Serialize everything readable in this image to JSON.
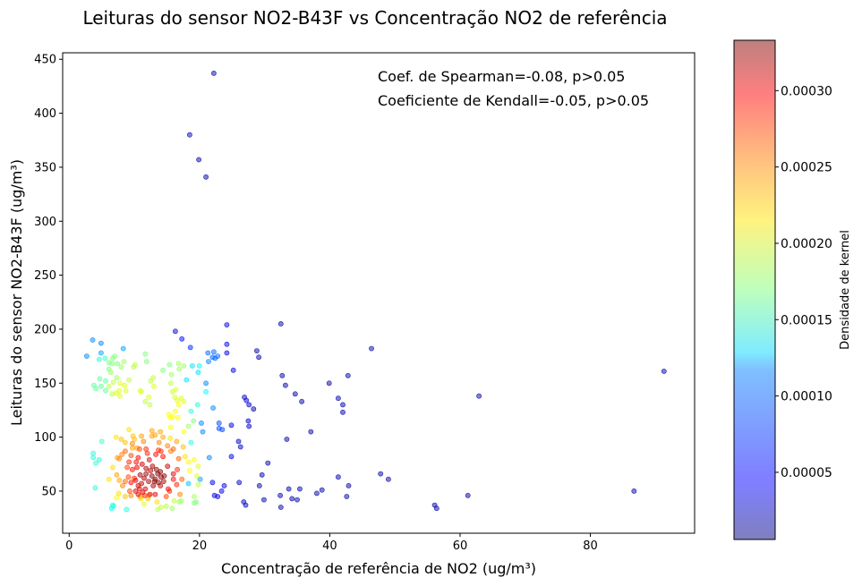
{
  "chart_data": {
    "type": "scatter",
    "title": "Leituras do sensor NO2-B43F vs Concentração NO2 de referência",
    "xlabel": "Concentração de referência de NO2 (ug/m³)",
    "ylabel": "Leituras do sensor NO2-B43F (ug/m³)",
    "xlim": [
      -1,
      96
    ],
    "ylim": [
      11,
      456
    ],
    "xticks": [
      0,
      20,
      40,
      60,
      80
    ],
    "yticks": [
      50,
      100,
      150,
      200,
      250,
      300,
      350,
      400,
      450
    ],
    "grid": false,
    "colormap": "jet",
    "marker_alpha": 0.5,
    "colorbar": {
      "label": "Densidade de kernel",
      "range": [
        6e-06,
        0.000333
      ],
      "ticks": [
        5e-05,
        0.0001,
        0.00015,
        0.0002,
        0.00025,
        0.0003
      ],
      "tick_labels": [
        "0.00005",
        "0.00010",
        "0.00015",
        "0.00020",
        "0.00025",
        "0.00030"
      ]
    },
    "annotations": [
      "Coef. de Spearman=-0.08, p>0.05",
      "Coeficiente de Kendall=-0.05, p>0.05"
    ],
    "points": [
      [
        22.2,
        437,
        2e-05
      ],
      [
        18.5,
        380,
        2e-05
      ],
      [
        19.9,
        357,
        2e-05
      ],
      [
        21.0,
        341,
        2e-05
      ],
      [
        91.3,
        161,
        2e-05
      ],
      [
        86.7,
        50,
        2e-05
      ],
      [
        62.9,
        138,
        2e-05
      ],
      [
        61.2,
        46,
        2e-05
      ],
      [
        56.4,
        34,
        2e-05
      ],
      [
        56.1,
        37,
        2e-05
      ],
      [
        49.0,
        61,
        2e-05
      ],
      [
        47.8,
        66,
        2e-05
      ],
      [
        46.4,
        182,
        2e-05
      ],
      [
        42.8,
        157,
        2e-05
      ],
      [
        42.9,
        55,
        2e-05
      ],
      [
        42.6,
        45,
        2e-05
      ],
      [
        42.0,
        130,
        2e-05
      ],
      [
        42.0,
        123,
        2e-05
      ],
      [
        41.3,
        136,
        2e-05
      ],
      [
        41.3,
        63,
        2e-05
      ],
      [
        39.9,
        150,
        2e-05
      ],
      [
        38.8,
        51,
        2e-05
      ],
      [
        38.0,
        48,
        2e-05
      ],
      [
        37.1,
        105,
        2e-05
      ],
      [
        35.7,
        133,
        2e-05
      ],
      [
        35.0,
        42,
        2e-05
      ],
      [
        35.4,
        52,
        2e-05
      ],
      [
        34.7,
        140,
        2e-05
      ],
      [
        34.2,
        43,
        2e-05
      ],
      [
        33.7,
        52,
        2e-05
      ],
      [
        33.4,
        98,
        2e-05
      ],
      [
        33.2,
        148,
        2e-05
      ],
      [
        32.7,
        157,
        2e-05
      ],
      [
        32.5,
        205,
        2e-05
      ],
      [
        32.5,
        35,
        2e-05
      ],
      [
        32.4,
        46,
        2e-05
      ],
      [
        30.5,
        76,
        2e-05
      ],
      [
        29.9,
        42,
        2e-05
      ],
      [
        29.6,
        65,
        2e-05
      ],
      [
        29.2,
        55,
        2e-05
      ],
      [
        29.1,
        174,
        2e-05
      ],
      [
        28.8,
        180,
        2e-05
      ],
      [
        28.3,
        126,
        2e-05
      ],
      [
        27.6,
        110,
        3e-05
      ],
      [
        27.5,
        115,
        3e-05
      ],
      [
        27.6,
        130,
        3e-05
      ],
      [
        27.2,
        134,
        3e-05
      ],
      [
        27.1,
        37,
        3e-05
      ],
      [
        26.9,
        137,
        3e-05
      ],
      [
        26.8,
        40,
        3e-05
      ],
      [
        26.0,
        96,
        3e-05
      ],
      [
        26.3,
        91,
        3e-05
      ],
      [
        26.1,
        58,
        3e-05
      ],
      [
        25.2,
        162,
        4e-05
      ],
      [
        24.9,
        111,
        4e-05
      ],
      [
        24.9,
        82,
        4e-05
      ],
      [
        24.2,
        204,
        4e-05
      ],
      [
        24.2,
        186,
        4e-05
      ],
      [
        24.2,
        178,
        4e-05
      ],
      [
        23.8,
        55,
        4e-05
      ],
      [
        23.4,
        50,
        4e-05
      ],
      [
        22.0,
        58,
        4e-05
      ],
      [
        22.8,
        45,
        4e-05
      ],
      [
        22.3,
        46,
        4e-05
      ],
      [
        16.3,
        198,
        4e-05
      ],
      [
        17.3,
        191,
        5e-05
      ],
      [
        18.6,
        183,
        6e-05
      ],
      [
        23.0,
        108,
        7e-05
      ],
      [
        23.0,
        113,
        7e-05
      ],
      [
        23.5,
        107,
        7e-05
      ],
      [
        22.4,
        173,
        8e-05
      ],
      [
        22.8,
        175,
        8e-05
      ],
      [
        22.0,
        174,
        8e-05
      ],
      [
        21.3,
        178,
        8e-05
      ],
      [
        22.2,
        179,
        8e-05
      ],
      [
        21.4,
        170,
        9e-05
      ],
      [
        22.1,
        127,
        9e-05
      ],
      [
        21.0,
        150,
        9e-05
      ],
      [
        20.5,
        105,
        9e-05
      ],
      [
        20.3,
        113,
        9e-05
      ],
      [
        21.5,
        81,
        9e-05
      ],
      [
        3.6,
        190,
        9e-05
      ],
      [
        4.9,
        187,
        9e-05
      ],
      [
        2.7,
        175,
        9e-05
      ],
      [
        4.9,
        178,
        0.0001
      ],
      [
        8.3,
        182,
        0.0001
      ],
      [
        20.1,
        61,
        0.0001
      ],
      [
        18.3,
        57,
        0.00011
      ],
      [
        18.0,
        153,
        0.00012
      ],
      [
        18.9,
        166,
        0.00012
      ],
      [
        19.8,
        160,
        0.00012
      ],
      [
        20.0,
        166,
        0.00013
      ],
      [
        21.0,
        142,
        0.00013
      ],
      [
        19.7,
        130,
        0.00014
      ],
      [
        18.7,
        124,
        0.00014
      ],
      [
        18.7,
        95,
        0.00014
      ],
      [
        6.5,
        34,
        0.00013
      ],
      [
        6.7,
        37,
        0.00014
      ],
      [
        6.8,
        36,
        0.00014
      ],
      [
        8.8,
        33,
        0.00014
      ],
      [
        3.7,
        81,
        0.00014
      ],
      [
        3.7,
        85,
        0.00014
      ],
      [
        4.1,
        76,
        0.00014
      ],
      [
        4.6,
        79,
        0.00014
      ],
      [
        4.0,
        53,
        0.00014
      ],
      [
        5.0,
        96,
        0.00015
      ],
      [
        4.6,
        172,
        0.00014
      ],
      [
        5.5,
        173,
        0.00015
      ],
      [
        3.8,
        148,
        0.00016
      ],
      [
        4.1,
        145,
        0.00016
      ],
      [
        4.9,
        147,
        0.00016
      ],
      [
        4.7,
        154,
        0.00016
      ],
      [
        5.6,
        152,
        0.00016
      ],
      [
        5.6,
        143,
        0.00016
      ],
      [
        6.1,
        163,
        0.00017
      ],
      [
        6.1,
        169,
        0.00017
      ],
      [
        6.6,
        168,
        0.00017
      ],
      [
        6.7,
        173,
        0.00017
      ],
      [
        7.0,
        175,
        0.00017
      ],
      [
        7.4,
        168,
        0.00017
      ],
      [
        6.4,
        160,
        0.00018
      ],
      [
        7.3,
        155,
        0.00018
      ],
      [
        6.8,
        151,
        0.00019
      ],
      [
        6.1,
        147,
        0.00019
      ],
      [
        6.6,
        140,
        0.00019
      ],
      [
        7.2,
        141,
        0.0002
      ],
      [
        7.8,
        138,
        0.0002
      ],
      [
        7.7,
        143,
        0.0002
      ],
      [
        7.8,
        150,
        0.0002
      ],
      [
        8.5,
        148,
        0.0002
      ],
      [
        8.7,
        143,
        0.0002
      ],
      [
        9.2,
        153,
        0.00019
      ],
      [
        9.9,
        165,
        0.00019
      ],
      [
        8.0,
        165,
        0.00018
      ],
      [
        8.4,
        170,
        0.00018
      ],
      [
        10.1,
        167,
        0.00019
      ],
      [
        11.7,
        177,
        0.00017
      ],
      [
        11.9,
        170,
        0.00017
      ],
      [
        12.9,
        155,
        0.00019
      ],
      [
        12.5,
        152,
        0.00019
      ],
      [
        13.0,
        147,
        0.0002
      ],
      [
        10.9,
        143,
        0.0002
      ],
      [
        11.1,
        142,
        0.0002
      ],
      [
        12.2,
        137,
        0.0002
      ],
      [
        11.7,
        133,
        0.00019
      ],
      [
        12.4,
        130,
        0.00019
      ],
      [
        15.4,
        167,
        0.00017
      ],
      [
        14.4,
        162,
        0.00017
      ],
      [
        15.7,
        158,
        0.00018
      ],
      [
        16.8,
        168,
        0.00018
      ],
      [
        16.9,
        163,
        0.00018
      ],
      [
        17.6,
        166,
        0.00018
      ],
      [
        15.6,
        150,
        0.00019
      ],
      [
        15.9,
        142,
        0.00019
      ],
      [
        16.2,
        137,
        0.0002
      ],
      [
        16.4,
        144,
        0.0002
      ],
      [
        16.6,
        134,
        0.0002
      ],
      [
        17.2,
        136,
        0.0002
      ],
      [
        17.6,
        133,
        0.0002
      ],
      [
        16.8,
        130,
        0.00021
      ],
      [
        16.3,
        124,
        0.00021
      ],
      [
        16.7,
        118,
        0.00021
      ],
      [
        15.3,
        121,
        0.00021
      ],
      [
        15.5,
        118,
        0.00021
      ],
      [
        15.9,
        119,
        0.00021
      ],
      [
        17.6,
        105,
        0.00021
      ],
      [
        15.6,
        109,
        0.00021
      ],
      [
        18.3,
        110,
        0.00018
      ],
      [
        19.1,
        115,
        0.00017
      ],
      [
        15.5,
        99,
        0.00022
      ],
      [
        7.2,
        100,
        0.00022
      ],
      [
        8.0,
        98,
        0.00023
      ],
      [
        8.6,
        95,
        0.00023
      ],
      [
        9.2,
        107,
        0.00022
      ],
      [
        9.8,
        101,
        0.00023
      ],
      [
        10.0,
        98,
        0.00023
      ],
      [
        10.4,
        90,
        0.00024
      ],
      [
        9.7,
        90,
        0.00024
      ],
      [
        11.1,
        101,
        0.00024
      ],
      [
        11.4,
        96,
        0.00025
      ],
      [
        12.7,
        101,
        0.00024
      ],
      [
        12.7,
        106,
        0.00024
      ],
      [
        13.2,
        102,
        0.00024
      ],
      [
        14.0,
        105,
        0.00024
      ],
      [
        14.4,
        100,
        0.00024
      ],
      [
        13.8,
        95,
        0.00025
      ],
      [
        15.1,
        92,
        0.00025
      ],
      [
        15.6,
        87,
        0.00025
      ],
      [
        16.5,
        96,
        0.00024
      ],
      [
        17.5,
        91,
        0.00023
      ],
      [
        17.8,
        82,
        0.00022
      ],
      [
        18.5,
        69,
        0.00021
      ],
      [
        18.3,
        77,
        0.00021
      ],
      [
        19.2,
        79,
        0.00021
      ],
      [
        19.8,
        73,
        0.0002
      ],
      [
        19.6,
        64,
        0.0002
      ],
      [
        19.8,
        56,
        0.00019
      ],
      [
        19.2,
        45,
        0.00018
      ],
      [
        19.2,
        39,
        0.00017
      ],
      [
        19.5,
        40,
        0.00017
      ],
      [
        17.2,
        41,
        0.00018
      ],
      [
        16.9,
        40,
        0.00018
      ],
      [
        15.8,
        34,
        0.00018
      ],
      [
        16.1,
        41,
        0.00019
      ],
      [
        14.9,
        36,
        0.00019
      ],
      [
        14.1,
        35,
        0.00019
      ],
      [
        13.6,
        33,
        0.00019
      ],
      [
        11.5,
        38,
        0.0002
      ],
      [
        11.0,
        43,
        0.00022
      ],
      [
        12.1,
        43,
        0.00023
      ],
      [
        13.5,
        40,
        0.00022
      ],
      [
        12.2,
        46,
        0.00024
      ],
      [
        10.9,
        45,
        0.00024
      ],
      [
        7.3,
        44,
        0.00021
      ],
      [
        7.6,
        48,
        0.00022
      ],
      [
        8.6,
        45,
        0.00023
      ],
      [
        9.5,
        46,
        0.00025
      ],
      [
        6.7,
        72,
        0.00022
      ],
      [
        6.1,
        61,
        0.00022
      ],
      [
        7.7,
        60,
        0.00024
      ],
      [
        7.3,
        65,
        0.00024
      ],
      [
        7.4,
        81,
        0.00024
      ],
      [
        7.7,
        80,
        0.00025
      ],
      [
        8.1,
        84,
        0.00025
      ],
      [
        8.6,
        87,
        0.00026
      ],
      [
        8.2,
        55,
        0.00025
      ],
      [
        8.6,
        59,
        0.00026
      ],
      [
        9.1,
        63,
        0.00027
      ],
      [
        10.0,
        62,
        0.00028
      ],
      [
        8.9,
        72,
        0.00027
      ],
      [
        9.2,
        77,
        0.00028
      ],
      [
        9.7,
        70,
        0.00029
      ],
      [
        9.3,
        50,
        0.00027
      ],
      [
        9.5,
        58,
        0.00029
      ],
      [
        10.2,
        60,
        0.0003
      ],
      [
        10.6,
        55,
        0.00031
      ],
      [
        10.6,
        47,
        0.0003
      ],
      [
        10.2,
        50,
        0.0003
      ],
      [
        11.3,
        49,
        0.0003
      ],
      [
        11.1,
        57,
        0.00031
      ],
      [
        11.5,
        62,
        0.00032
      ],
      [
        10.9,
        65,
        0.00032
      ],
      [
        11.8,
        66,
        0.00032
      ],
      [
        11.8,
        71,
        0.00032
      ],
      [
        11.2,
        75,
        0.00031
      ],
      [
        10.6,
        81,
        0.00029
      ],
      [
        10.8,
        89,
        0.00027
      ],
      [
        12.0,
        85,
        0.00028
      ],
      [
        11.8,
        89,
        0.00028
      ],
      [
        12.3,
        79,
        0.0003
      ],
      [
        12.8,
        73,
        0.00032
      ],
      [
        12.7,
        64,
        0.00033
      ],
      [
        13.2,
        61,
        0.00033
      ],
      [
        13.6,
        66,
        0.00033
      ],
      [
        13.4,
        70,
        0.00033
      ],
      [
        13.1,
        59,
        0.00033
      ],
      [
        12.9,
        55,
        0.00032
      ],
      [
        13.7,
        58,
        0.00033
      ],
      [
        14.1,
        63,
        0.00033
      ],
      [
        14.0,
        68,
        0.00033
      ],
      [
        14.6,
        64,
        0.00033
      ],
      [
        14.5,
        59,
        0.00032
      ],
      [
        14.0,
        55,
        0.00031
      ],
      [
        15.1,
        73,
        0.00031
      ],
      [
        15.2,
        52,
        0.00029
      ],
      [
        16.0,
        61,
        0.00029
      ],
      [
        16.5,
        56,
        0.00028
      ],
      [
        16.0,
        66,
        0.0003
      ],
      [
        16.6,
        70,
        0.00028
      ],
      [
        16.8,
        80,
        0.00026
      ],
      [
        16.0,
        89,
        0.00026
      ],
      [
        14.4,
        82,
        0.00029
      ],
      [
        14.1,
        87,
        0.00028
      ],
      [
        13.7,
        88,
        0.00028
      ],
      [
        13.3,
        84,
        0.00029
      ],
      [
        13.2,
        47,
        0.0003
      ],
      [
        12.4,
        47,
        0.0003
      ],
      [
        15.4,
        50,
        0.00028
      ],
      [
        14.9,
        45,
        0.00027
      ],
      [
        17.3,
        61,
        0.00026
      ],
      [
        17.0,
        47,
        0.00025
      ],
      [
        9.5,
        83,
        0.00027
      ],
      [
        10.3,
        77,
        0.00029
      ],
      [
        9.7,
        94,
        0.00025
      ],
      [
        11.6,
        46,
        0.00028
      ],
      [
        10.8,
        52,
        0.0003
      ],
      [
        11.7,
        52,
        0.0003
      ],
      [
        12.2,
        59,
        0.00032
      ],
      [
        10.4,
        72,
        0.0003
      ],
      [
        12.5,
        69,
        0.00032
      ]
    ]
  }
}
